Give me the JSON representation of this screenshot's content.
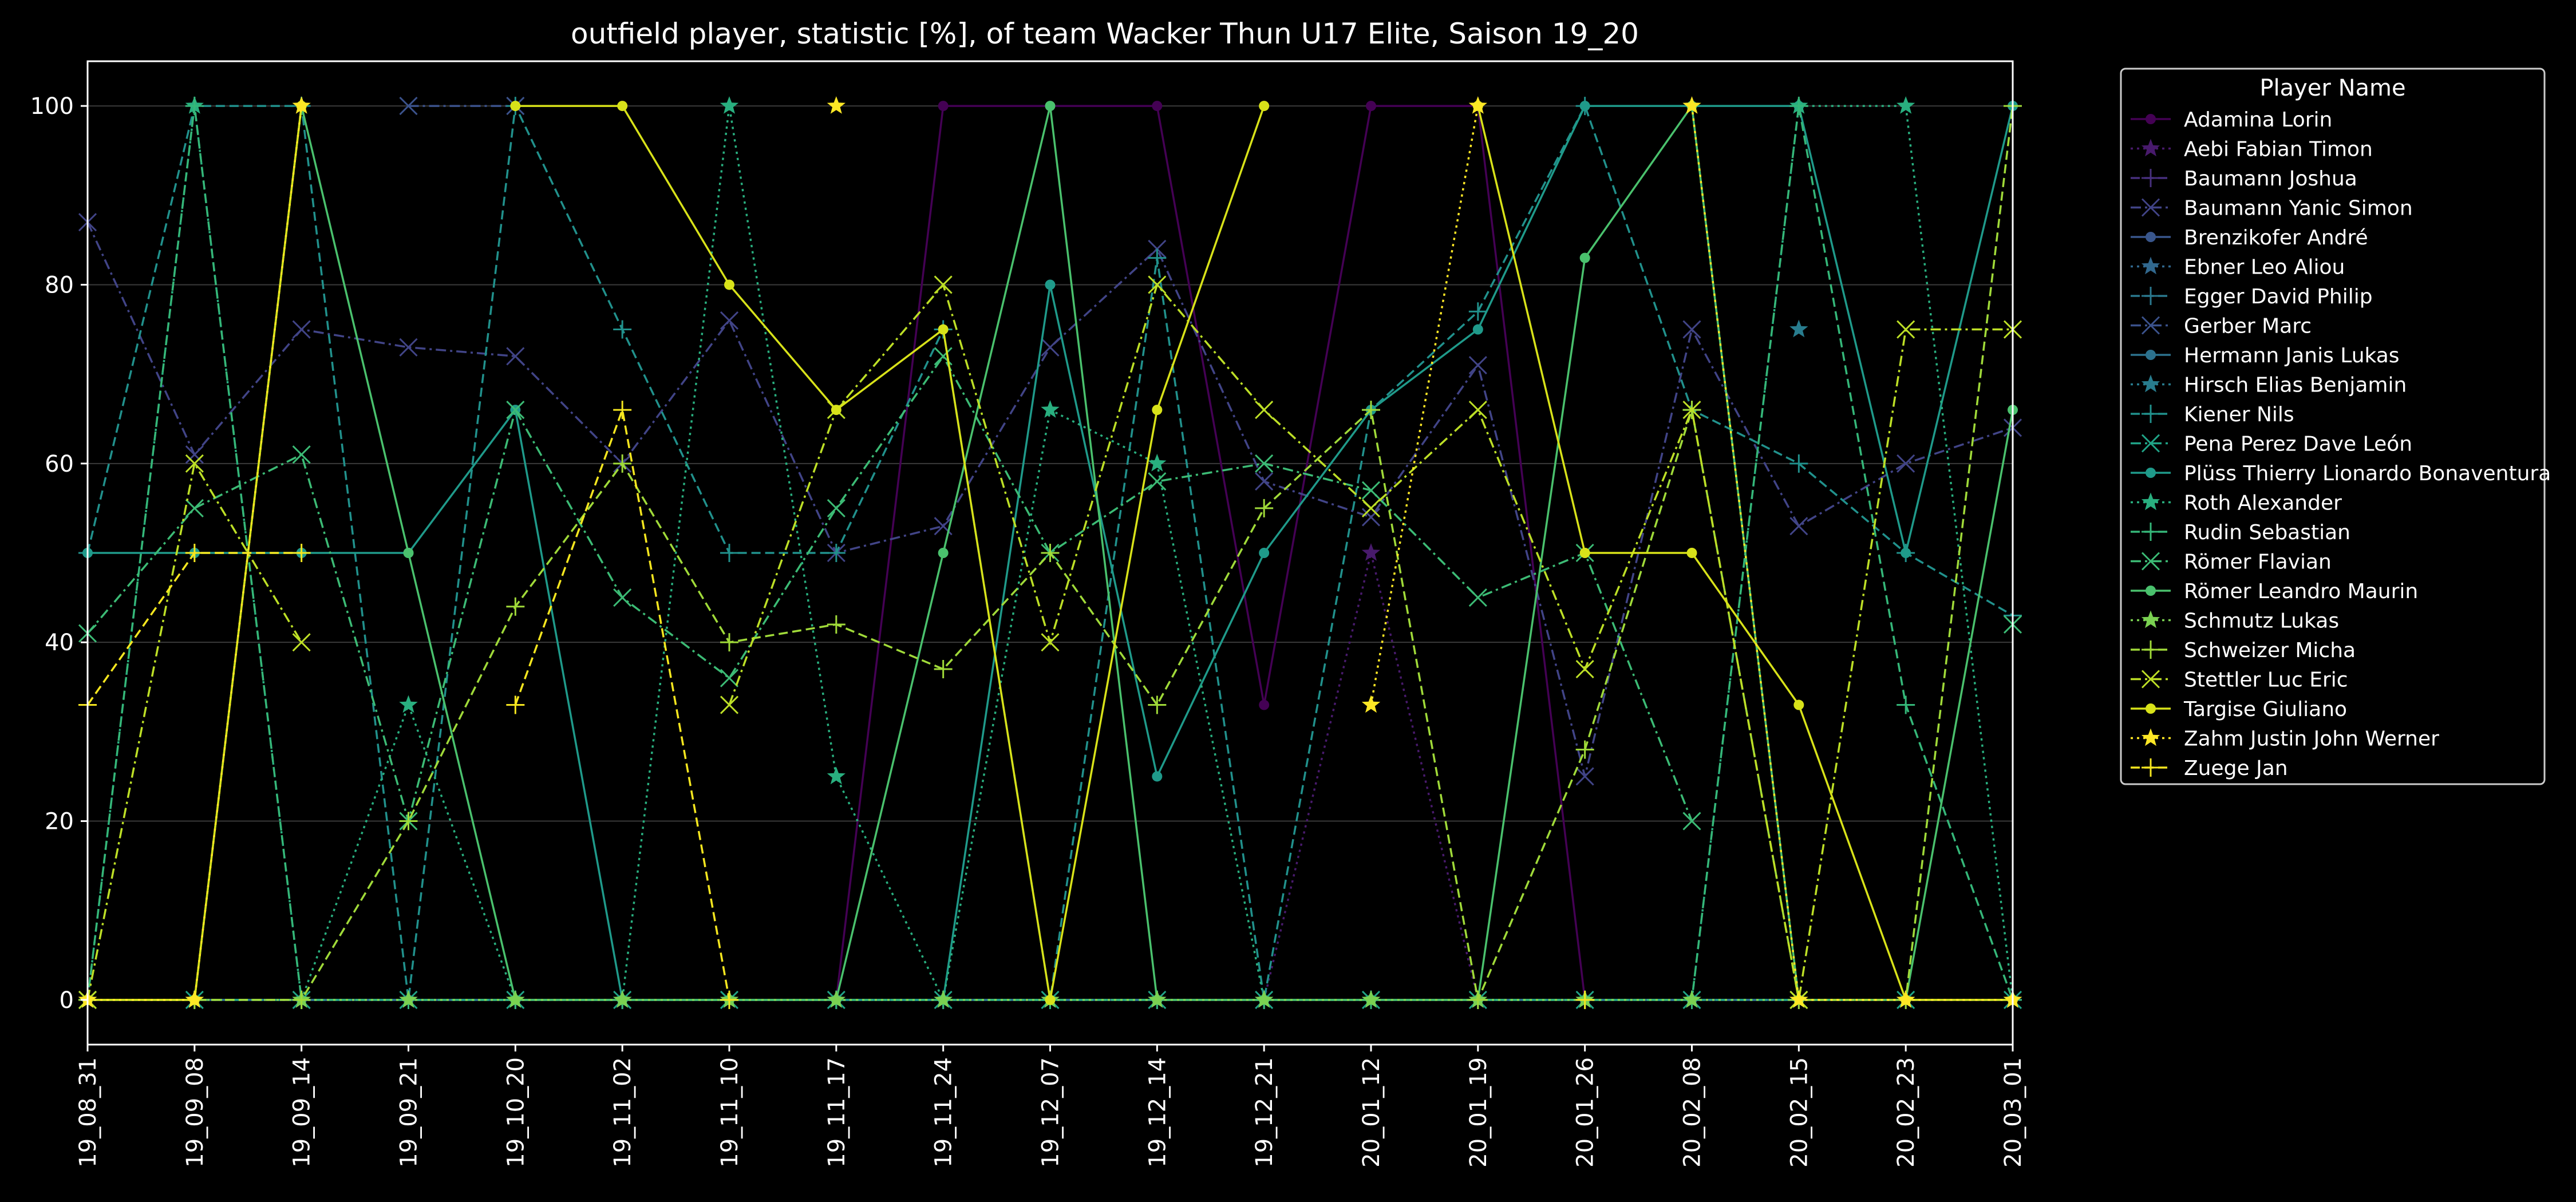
{
  "chart_data": {
    "type": "line",
    "title": "outfield player, statistic [%], of team Wacker Thun U17 Elite, Saison 19_20",
    "xlabel": "",
    "ylabel": "",
    "ylim": [
      -5,
      105
    ],
    "yticks": [
      0,
      20,
      40,
      60,
      80,
      100
    ],
    "grid": true,
    "legend_title": "Player Name",
    "legend_position": "outside-right-top",
    "categories": [
      "19_08_31",
      "19_09_08",
      "19_09_14",
      "19_09_21",
      "19_10_20",
      "19_11_02",
      "19_11_10",
      "19_11_17",
      "19_11_24",
      "19_12_07",
      "19_12_14",
      "19_12_21",
      "20_01_12",
      "20_01_19",
      "20_01_26",
      "20_02_08",
      "20_02_15",
      "20_02_23",
      "20_03_01"
    ],
    "series": [
      {
        "name": "Adamina Lorin",
        "color": "#440154",
        "dash": "solid",
        "marker": "circle",
        "values": [
          0,
          0,
          0,
          0,
          0,
          0,
          0,
          0,
          100,
          100,
          100,
          33,
          100,
          100,
          0,
          0,
          0,
          0,
          0
        ]
      },
      {
        "name": "Aebi Fabian Timon",
        "color": "#481a6c",
        "dash": "dotted",
        "marker": "star",
        "values": [
          0,
          0,
          0,
          0,
          0,
          0,
          0,
          0,
          0,
          0,
          0,
          0,
          50,
          0,
          0,
          0,
          0,
          0,
          0
        ]
      },
      {
        "name": "Baumann Joshua",
        "color": "#472f7d",
        "dash": "dashed",
        "marker": "plus",
        "values": [
          0,
          0,
          0,
          0,
          0,
          0,
          0,
          0,
          0,
          0,
          0,
          0,
          0,
          0,
          0,
          0,
          0,
          0,
          0
        ]
      },
      {
        "name": "Baumann Yanic Simon",
        "color": "#414487",
        "dash": "dashdot",
        "marker": "x",
        "values": [
          87,
          61,
          75,
          73,
          72,
          60,
          76,
          50,
          53,
          73,
          84,
          58,
          54,
          71,
          25,
          75,
          53,
          60,
          64
        ]
      },
      {
        "name": "Brenzikofer André",
        "color": "#39568c",
        "dash": "solid",
        "marker": "circle",
        "values": [
          0,
          0,
          0,
          0,
          0,
          0,
          0,
          0,
          0,
          0,
          0,
          0,
          0,
          0,
          0,
          0,
          0,
          0,
          0
        ]
      },
      {
        "name": "Ebner Leo Aliou",
        "color": "#31688e",
        "dash": "dotted",
        "marker": "star",
        "values": [
          0,
          0,
          0,
          0,
          0,
          0,
          0,
          0,
          0,
          0,
          0,
          0,
          0,
          0,
          0,
          0,
          0,
          0,
          0
        ]
      },
      {
        "name": "Egger David Philip",
        "color": "#2a788e",
        "dash": "dashed",
        "marker": "plus",
        "values": [
          0,
          0,
          0,
          0,
          0,
          0,
          0,
          0,
          0,
          0,
          0,
          0,
          0,
          0,
          0,
          0,
          0,
          0,
          0
        ]
      },
      {
        "name": "Gerber Marc",
        "color": "#3b528b",
        "dash": "dashdot",
        "marker": "x",
        "values": [
          null,
          null,
          null,
          100,
          100,
          null,
          null,
          null,
          null,
          null,
          null,
          null,
          null,
          null,
          null,
          null,
          null,
          null,
          null
        ]
      },
      {
        "name": "Hermann Janis Lukas",
        "color": "#2c728e",
        "dash": "solid",
        "marker": "circle",
        "values": [
          0,
          0,
          0,
          0,
          0,
          0,
          0,
          0,
          0,
          0,
          0,
          0,
          0,
          0,
          0,
          0,
          0,
          0,
          0
        ]
      },
      {
        "name": "Hirsch Elias Benjamin",
        "color": "#287c8e",
        "dash": "dotted",
        "marker": "star",
        "values": [
          null,
          null,
          null,
          null,
          null,
          null,
          null,
          null,
          null,
          null,
          null,
          null,
          null,
          null,
          null,
          null,
          75,
          null,
          null
        ]
      },
      {
        "name": "Kiener Nils",
        "color": "#21918c",
        "dash": "dashed",
        "marker": "plus",
        "values": [
          50,
          100,
          100,
          0,
          100,
          75,
          50,
          50,
          75,
          0,
          83,
          0,
          66,
          77,
          100,
          66,
          60,
          50,
          43
        ]
      },
      {
        "name": "Pena Perez Dave León",
        "color": "#20a386",
        "dash": "dashdot",
        "marker": "x",
        "values": [
          0,
          0,
          0,
          0,
          0,
          0,
          0,
          0,
          0,
          0,
          0,
          0,
          0,
          0,
          0,
          0,
          0,
          0,
          0
        ]
      },
      {
        "name": "Plüss Thierry Lionardo Bonaventura",
        "color": "#1f9a8a",
        "dash": "solid",
        "marker": "circle",
        "values": [
          50,
          50,
          50,
          50,
          66,
          0,
          0,
          0,
          0,
          80,
          25,
          50,
          66,
          75,
          100,
          100,
          100,
          50,
          100
        ]
      },
      {
        "name": "Roth Alexander",
        "color": "#29af7f",
        "dash": "dotted",
        "marker": "star",
        "values": [
          0,
          100,
          0,
          33,
          0,
          0,
          100,
          25,
          0,
          66,
          60,
          0,
          0,
          0,
          0,
          0,
          100,
          100,
          0
        ]
      },
      {
        "name": "Rudin Sebastian",
        "color": "#35b779",
        "dash": "dashed",
        "marker": "plus",
        "values": [
          0,
          100,
          0,
          0,
          0,
          0,
          0,
          0,
          0,
          0,
          0,
          0,
          0,
          0,
          0,
          0,
          100,
          33,
          0
        ]
      },
      {
        "name": "Römer Flavian",
        "color": "#3cbb75",
        "dash": "dashdot",
        "marker": "x",
        "values": [
          41,
          55,
          61,
          20,
          66,
          45,
          36,
          55,
          72,
          50,
          58,
          60,
          57,
          45,
          50,
          20,
          null,
          null,
          42
        ]
      },
      {
        "name": "Römer Leandro Maurin",
        "color": "#4ac16d",
        "dash": "solid",
        "marker": "circle",
        "values": [
          0,
          0,
          100,
          50,
          0,
          0,
          0,
          0,
          50,
          100,
          0,
          0,
          0,
          0,
          83,
          100,
          0,
          0,
          66
        ]
      },
      {
        "name": "Schmutz Lukas",
        "color": "#7ad151",
        "dash": "dotted",
        "marker": "star",
        "values": [
          0,
          0,
          0,
          0,
          0,
          0,
          0,
          0,
          0,
          0,
          0,
          0,
          0,
          0,
          0,
          0,
          0,
          0,
          0
        ]
      },
      {
        "name": "Schweizer Micha",
        "color": "#a0da39",
        "dash": "dashed",
        "marker": "plus",
        "values": [
          0,
          0,
          0,
          20,
          44,
          60,
          40,
          42,
          37,
          50,
          33,
          55,
          66,
          0,
          28,
          66,
          0,
          0,
          100
        ]
      },
      {
        "name": "Stettler Luc Eric",
        "color": "#bddf26",
        "dash": "dashdot",
        "marker": "x",
        "values": [
          0,
          60,
          40,
          null,
          null,
          null,
          33,
          66,
          80,
          40,
          80,
          66,
          55,
          66,
          37,
          66,
          0,
          75,
          75
        ]
      },
      {
        "name": "Targise Giuliano",
        "color": "#d8e219",
        "dash": "solid",
        "marker": "circle",
        "values": [
          0,
          0,
          100,
          null,
          100,
          100,
          80,
          66,
          75,
          0,
          66,
          100,
          null,
          100,
          50,
          50,
          33,
          0,
          0
        ]
      },
      {
        "name": "Zahm Justin John Werner",
        "color": "#fde725",
        "dash": "dotted",
        "marker": "star",
        "values": [
          0,
          0,
          100,
          null,
          null,
          null,
          null,
          100,
          null,
          null,
          null,
          null,
          33,
          100,
          null,
          100,
          0,
          0,
          0
        ]
      },
      {
        "name": "Zuege Jan",
        "color": "#f5e61f",
        "dash": "dashed",
        "marker": "plus",
        "values": [
          33,
          50,
          50,
          null,
          33,
          66,
          0,
          null,
          null,
          null,
          null,
          null,
          null,
          null,
          0,
          null,
          null,
          null,
          null
        ]
      }
    ]
  }
}
